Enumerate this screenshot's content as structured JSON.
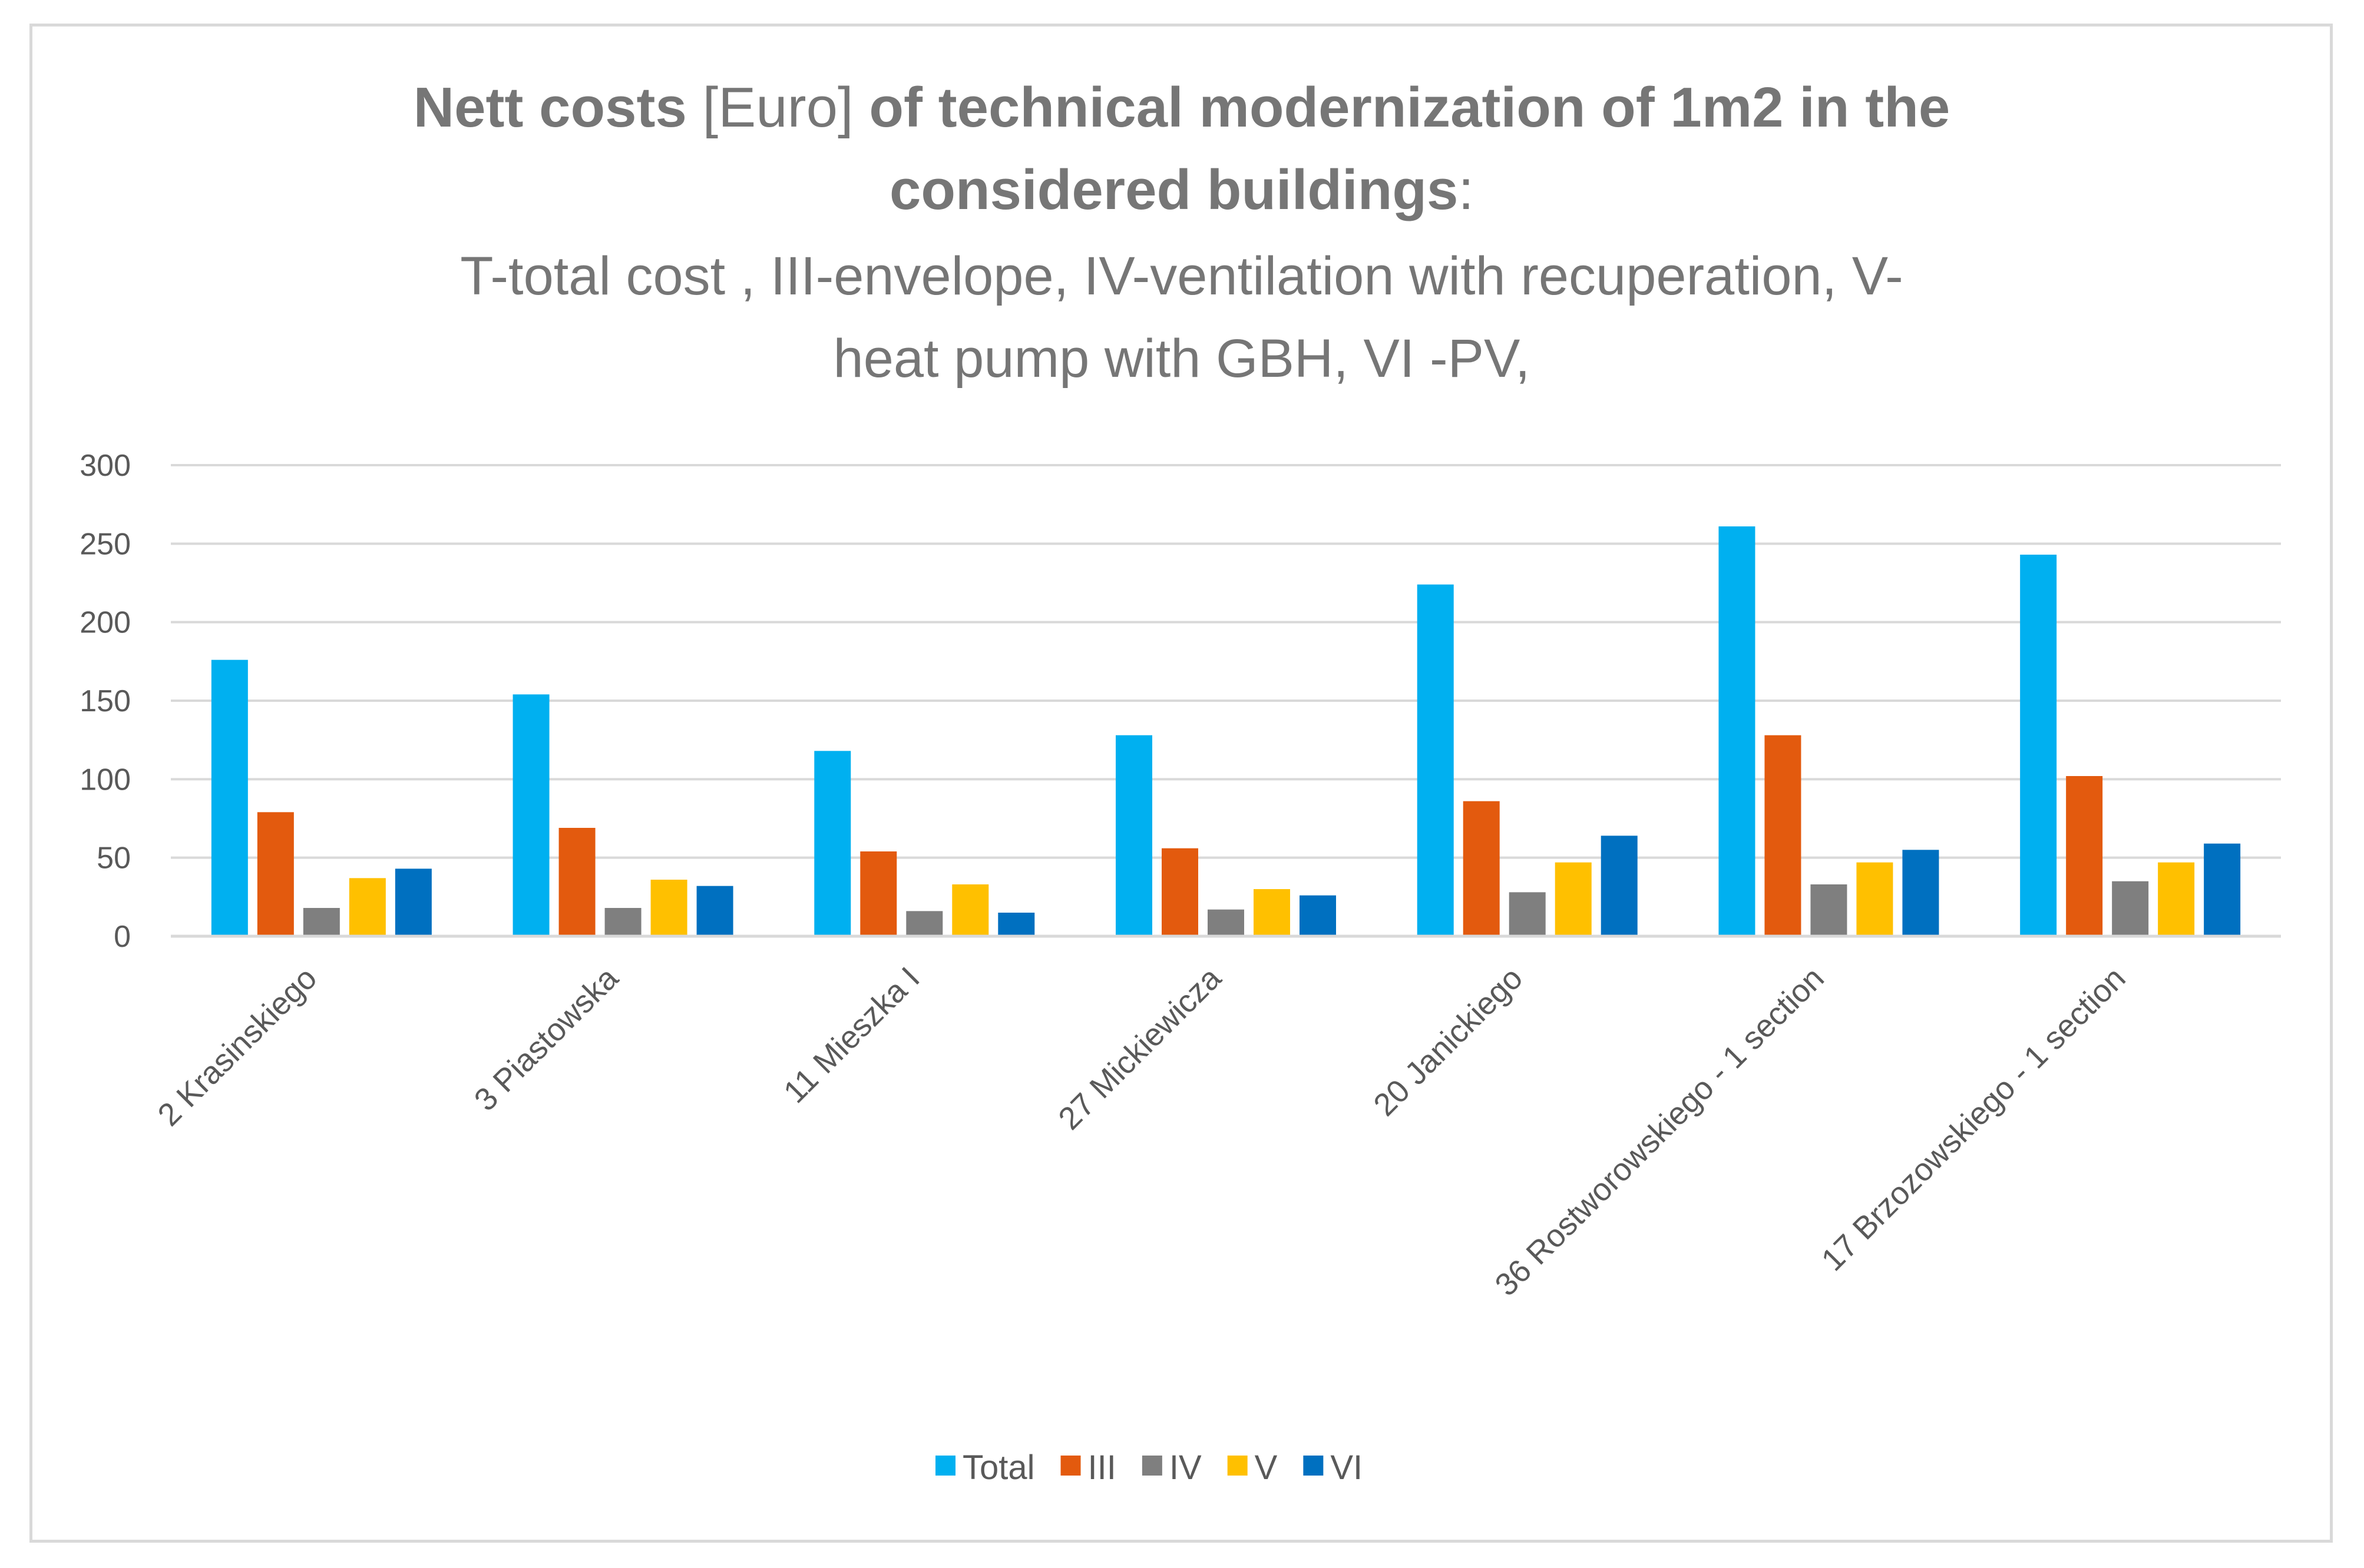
{
  "chart_data": {
    "type": "bar",
    "title_parts": [
      {
        "text": "Nett costs",
        "bold": true
      },
      {
        "text": " [Euro] ",
        "bold": false
      },
      {
        "text": "of  technical modernization of 1m2 in the",
        "bold": true
      }
    ],
    "title_line2_parts": [
      {
        "text": "considered buildings",
        "bold": true
      },
      {
        "text": ":",
        "bold": false
      }
    ],
    "subtitle_lines": [
      "T-total cost , III-envelope, IV-ventilation with recuperation, V-",
      "heat pump with GBH, VI -PV,"
    ],
    "categories": [
      "2 Krasinskiego",
      "3 Piastowska",
      "11 Mieszka I",
      "27 Mickiewicza",
      "20 Janickiego",
      "36 Rostworowskiego - 1 section",
      "17 Brzozowskiego - 1 section"
    ],
    "series": [
      {
        "name": "Total",
        "color": "#00b0f0",
        "values": [
          176,
          154,
          118,
          128,
          224,
          261,
          243
        ]
      },
      {
        "name": "III",
        "color": "#e35a0e",
        "values": [
          79,
          69,
          54,
          56,
          86,
          128,
          102
        ]
      },
      {
        "name": "IV",
        "color": "#7f7f7f",
        "values": [
          18,
          18,
          16,
          17,
          28,
          33,
          35
        ]
      },
      {
        "name": "V",
        "color": "#ffc000",
        "values": [
          37,
          36,
          33,
          30,
          47,
          47,
          47
        ]
      },
      {
        "name": "VI",
        "color": "#0070c0",
        "values": [
          43,
          32,
          15,
          26,
          64,
          55,
          59
        ]
      }
    ],
    "y_ticks": [
      "0",
      "50",
      "100",
      "150",
      "200",
      "250",
      "300"
    ],
    "ylim": [
      0,
      300
    ],
    "grid": true,
    "legend_position": "bottom"
  }
}
